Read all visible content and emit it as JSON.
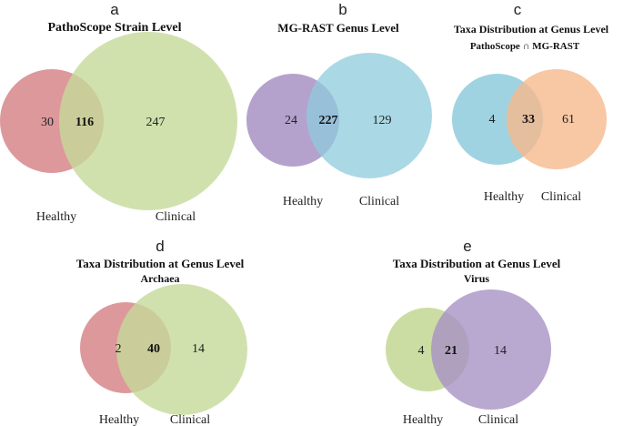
{
  "colors": {
    "pink": "#d7868b",
    "green": "#c6d99a",
    "purple": "#a792c4",
    "blue": "#8fcbdc",
    "orange": "#f6b98c"
  },
  "panels": [
    {
      "letter": "a",
      "title": "PathoScope  Strain Level",
      "subtitle": "",
      "left": {
        "label": "Healthy",
        "only": "30",
        "color": "pink"
      },
      "overlap": "116",
      "right": {
        "label": "Clinical",
        "only": "247",
        "color": "green"
      }
    },
    {
      "letter": "b",
      "title": "MG-RAST Genus Level",
      "subtitle": "",
      "left": {
        "label": "Healthy",
        "only": "24",
        "color": "purple"
      },
      "overlap": "227",
      "right": {
        "label": "Clinical",
        "only": "129",
        "color": "blue"
      }
    },
    {
      "letter": "c",
      "title": "Taxa Distribution  at Genus Level",
      "subtitle": "PathoScope ∩ MG-RAST",
      "left": {
        "label": "Healthy",
        "only": "4",
        "color": "blue"
      },
      "overlap": "33",
      "right": {
        "label": "Clinical",
        "only": "61",
        "color": "orange"
      }
    },
    {
      "letter": "d",
      "title": "Taxa Distribution at Genus Level",
      "subtitle": "Archaea",
      "left": {
        "label": "Healthy",
        "only": "2",
        "color": "pink"
      },
      "overlap": "40",
      "right": {
        "label": "Clinical",
        "only": "14",
        "color": "green"
      }
    },
    {
      "letter": "e",
      "title": "Taxa Distribution at Genus Level",
      "subtitle": "Virus",
      "left": {
        "label": "Healthy",
        "only": "4",
        "color": "green"
      },
      "overlap": "21",
      "right": {
        "label": "Clinical",
        "only": "14",
        "color": "purple"
      }
    }
  ]
}
